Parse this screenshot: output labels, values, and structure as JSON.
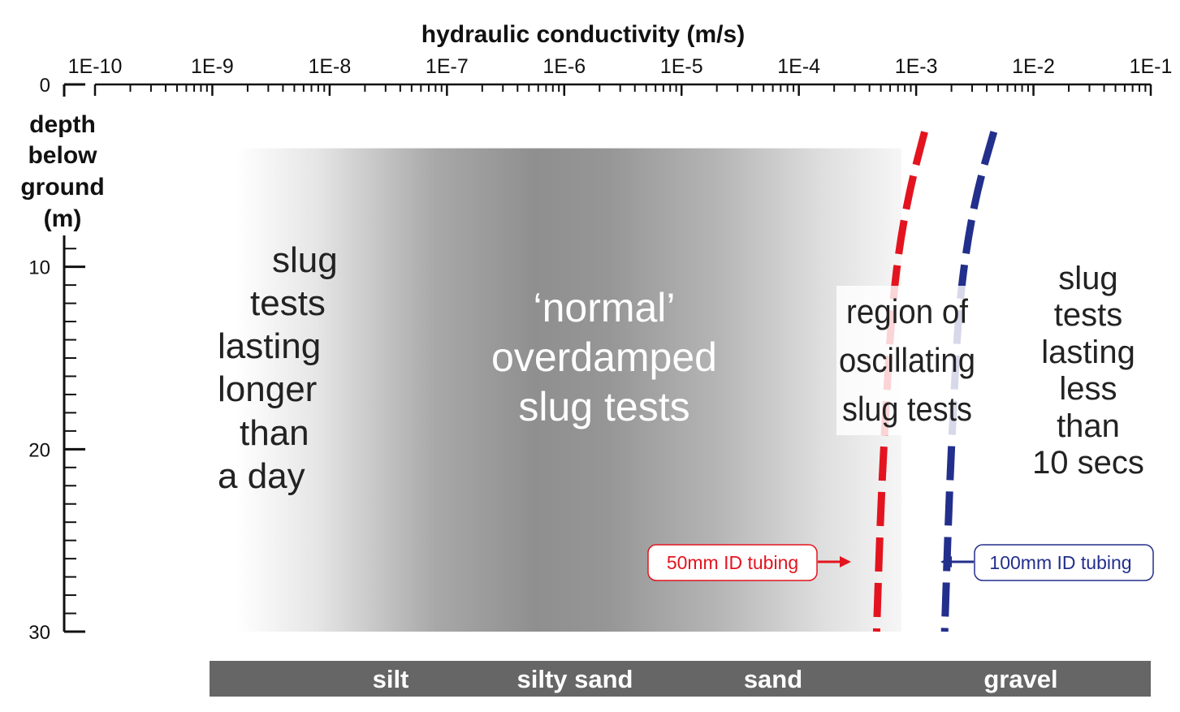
{
  "chart_data": {
    "type": "line",
    "title": "hydraulic conductivity (m/s)",
    "xlabel": "hydraulic conductivity (m/s)",
    "ylabel": [
      "depth",
      "below",
      "ground",
      "(m)"
    ],
    "x_scale": "log",
    "xlim": [
      1e-10,
      0.1
    ],
    "x_ticks": [
      "1E-10",
      "1E-9",
      "1E-8",
      "1E-7",
      "1E-6",
      "1E-5",
      "1E-4",
      "1E-3",
      "1E-2",
      "1E-1"
    ],
    "ylim": [
      30,
      0
    ],
    "y_ticks": [
      "0",
      "10",
      "20",
      "30"
    ],
    "grid": false,
    "series": [
      {
        "name": "50mm ID tubing",
        "color": "#e3141f",
        "style": "dashed",
        "points": [
          {
            "k": 0.00118,
            "depth": 2.6
          },
          {
            "k": 0.0009,
            "depth": 5.5
          },
          {
            "k": 0.00072,
            "depth": 8.8
          },
          {
            "k": 0.00062,
            "depth": 12.5
          },
          {
            "k": 0.00056,
            "depth": 17
          },
          {
            "k": 0.0005,
            "depth": 23
          },
          {
            "k": 0.00046,
            "depth": 30
          }
        ]
      },
      {
        "name": "100mm ID tubing",
        "color": "#232f8c",
        "style": "dashed",
        "points": [
          {
            "k": 0.0046,
            "depth": 2.6
          },
          {
            "k": 0.0034,
            "depth": 5.5
          },
          {
            "k": 0.0027,
            "depth": 8.8
          },
          {
            "k": 0.0023,
            "depth": 12.5
          },
          {
            "k": 0.0021,
            "depth": 17
          },
          {
            "k": 0.0019,
            "depth": 23
          },
          {
            "k": 0.00175,
            "depth": 30
          }
        ]
      }
    ],
    "shaded_region": {
      "k_from": 1.6e-09,
      "k_to": 0.00075,
      "darkest_k": 3e-06,
      "depth_from": 3.5,
      "depth_to": 30
    },
    "annotations": {
      "left_region": [
        "slug",
        "tests",
        "lasting",
        "longer",
        "than",
        "a day"
      ],
      "middle_region": [
        "‘normal’",
        "overdamped",
        "slug tests"
      ],
      "oscillating_region": [
        "region of",
        "oscillating",
        "slug tests"
      ],
      "right_region": [
        "slug",
        "tests",
        "lasting",
        "less",
        "than",
        "10 secs"
      ],
      "red_tubing_label": "50mm ID tubing",
      "blue_tubing_label": "100mm ID tubing"
    },
    "soil_bar": {
      "color": "#666666",
      "labels": [
        "silt",
        "silty sand",
        "sand",
        "gravel"
      ]
    }
  }
}
